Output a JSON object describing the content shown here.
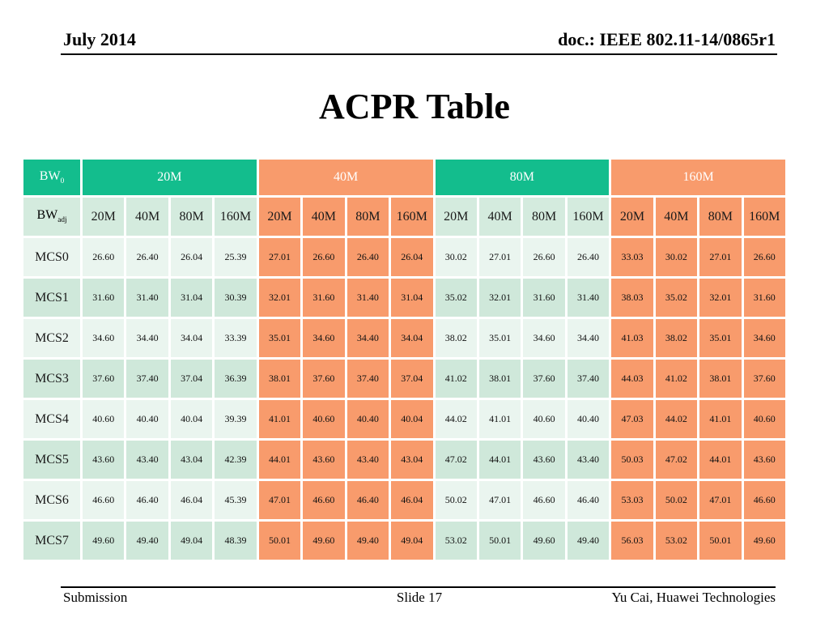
{
  "header": {
    "date": "July 2014",
    "doc": "doc.: IEEE 802.11-14/0865r1"
  },
  "title": "ACPR Table",
  "table": {
    "corner_top": {
      "base": "BW",
      "sub": "0"
    },
    "corner_sub": {
      "base": "BW",
      "sub": "adj"
    },
    "groups": [
      {
        "label": "20M",
        "color": "green"
      },
      {
        "label": "40M",
        "color": "orange"
      },
      {
        "label": "80M",
        "color": "green"
      },
      {
        "label": "160M",
        "color": "orange"
      }
    ],
    "sub_bandwidths": [
      "20M",
      "40M",
      "80M",
      "160M"
    ],
    "rows": [
      {
        "label": "MCS0",
        "values": [
          "26.60",
          "26.40",
          "26.04",
          "25.39",
          "27.01",
          "26.60",
          "26.40",
          "26.04",
          "30.02",
          "27.01",
          "26.60",
          "26.40",
          "33.03",
          "30.02",
          "27.01",
          "26.60"
        ]
      },
      {
        "label": "MCS1",
        "values": [
          "31.60",
          "31.40",
          "31.04",
          "30.39",
          "32.01",
          "31.60",
          "31.40",
          "31.04",
          "35.02",
          "32.01",
          "31.60",
          "31.40",
          "38.03",
          "35.02",
          "32.01",
          "31.60"
        ]
      },
      {
        "label": "MCS2",
        "values": [
          "34.60",
          "34.40",
          "34.04",
          "33.39",
          "35.01",
          "34.60",
          "34.40",
          "34.04",
          "38.02",
          "35.01",
          "34.60",
          "34.40",
          "41.03",
          "38.02",
          "35.01",
          "34.60"
        ]
      },
      {
        "label": "MCS3",
        "values": [
          "37.60",
          "37.40",
          "37.04",
          "36.39",
          "38.01",
          "37.60",
          "37.40",
          "37.04",
          "41.02",
          "38.01",
          "37.60",
          "37.40",
          "44.03",
          "41.02",
          "38.01",
          "37.60"
        ]
      },
      {
        "label": "MCS4",
        "values": [
          "40.60",
          "40.40",
          "40.04",
          "39.39",
          "41.01",
          "40.60",
          "40.40",
          "40.04",
          "44.02",
          "41.01",
          "40.60",
          "40.40",
          "47.03",
          "44.02",
          "41.01",
          "40.60"
        ]
      },
      {
        "label": "MCS5",
        "values": [
          "43.60",
          "43.40",
          "43.04",
          "42.39",
          "44.01",
          "43.60",
          "43.40",
          "43.04",
          "47.02",
          "44.01",
          "43.60",
          "43.40",
          "50.03",
          "47.02",
          "44.01",
          "43.60"
        ]
      },
      {
        "label": "MCS6",
        "values": [
          "46.60",
          "46.40",
          "46.04",
          "45.39",
          "47.01",
          "46.60",
          "46.40",
          "46.04",
          "50.02",
          "47.01",
          "46.60",
          "46.40",
          "53.03",
          "50.02",
          "47.01",
          "46.60"
        ]
      },
      {
        "label": "MCS7",
        "values": [
          "49.60",
          "49.40",
          "49.04",
          "48.39",
          "50.01",
          "49.60",
          "49.40",
          "49.04",
          "53.02",
          "50.01",
          "49.60",
          "49.40",
          "56.03",
          "53.02",
          "50.01",
          "49.60"
        ]
      }
    ]
  },
  "footer": {
    "left": "Submission",
    "center": "Slide 17",
    "right": "Yu Cai, Huawei Technologies"
  },
  "colors": {
    "header_green": "#13bd8d",
    "header_orange": "#f89b6c",
    "subheader_green": "#d4ebde",
    "row_light_green": "#eaf5ef",
    "row_mint_green": "#cfe8da"
  }
}
